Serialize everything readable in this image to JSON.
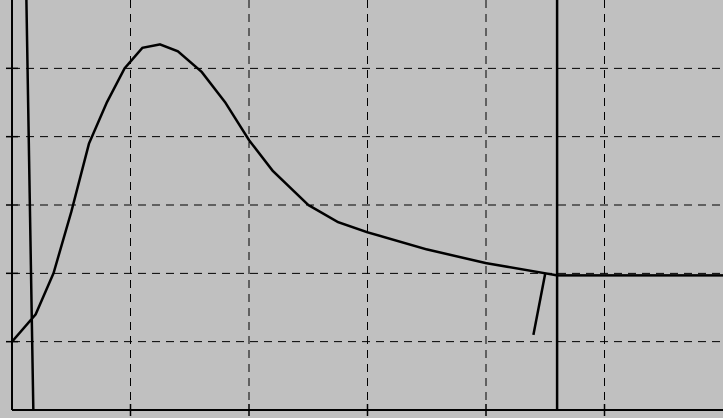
{
  "colors": {
    "background": "#c0c0c0",
    "grid": "#000000",
    "line": "#000000"
  },
  "chart_data": {
    "type": "line",
    "title": "",
    "xlabel": "",
    "ylabel": "",
    "grid": true,
    "xlim": [
      0,
      6
    ],
    "ylim": [
      0,
      6
    ],
    "x_gridlines": [
      1,
      2,
      3,
      4,
      5
    ],
    "y_gridlines": [
      1,
      2,
      3,
      4,
      5
    ],
    "series": [
      {
        "x": [
          0,
          0.2,
          0.35,
          0.5,
          0.65,
          0.8,
          0.95,
          1.1,
          1.25,
          1.4,
          1.6,
          1.8,
          2.0,
          2.2,
          2.5,
          2.75,
          3.0,
          3.5,
          4.0,
          4.5,
          4.6
        ],
        "y": [
          1.0,
          1.4,
          2.0,
          2.9,
          3.9,
          4.5,
          5.0,
          5.3,
          5.35,
          5.25,
          4.95,
          4.5,
          3.95,
          3.5,
          3.0,
          2.75,
          2.6,
          2.35,
          2.15,
          2.0,
          1.97
        ]
      },
      {
        "x": [
          4.6,
          6.0
        ],
        "y": [
          1.97,
          1.97
        ]
      }
    ],
    "reference_lines": [
      {
        "from": [
          0.12,
          6.15
        ],
        "to": [
          0.18,
          0
        ]
      },
      {
        "from": [
          4.6,
          6.15
        ],
        "to": [
          4.6,
          0
        ]
      },
      {
        "from": [
          4.5,
          2.0
        ],
        "to": [
          4.4,
          1.1
        ]
      }
    ]
  }
}
